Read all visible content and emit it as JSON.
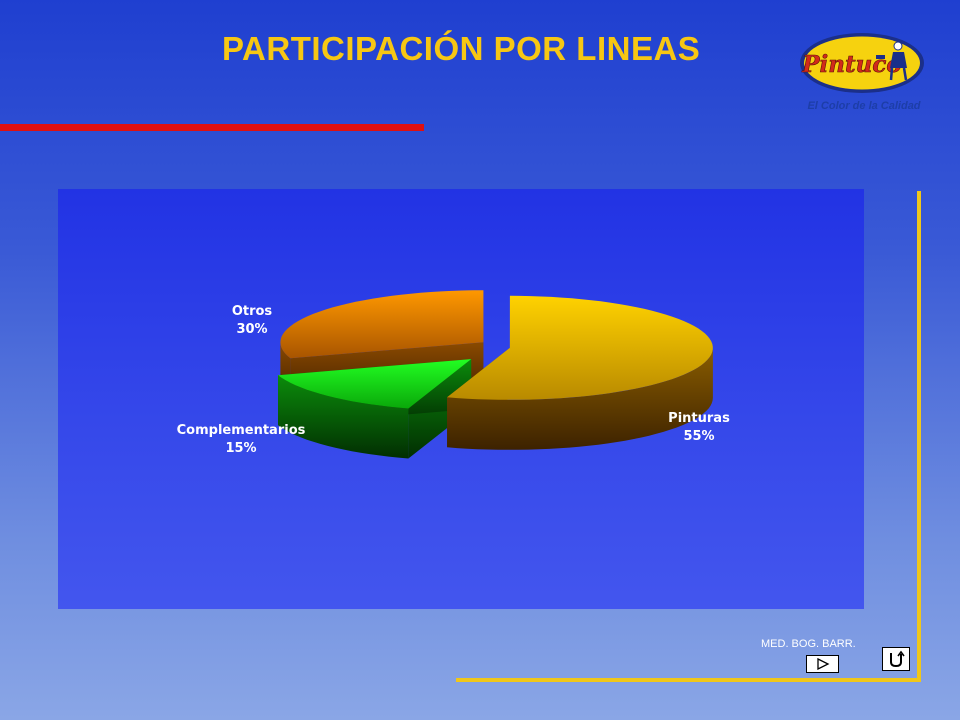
{
  "slide": {
    "title": "PARTICIPACIÓN POR LINEAS",
    "footer": "MED. BOG. BARR.",
    "accent_colors": {
      "title": "#f7c713",
      "bar": "#e01010",
      "frame": "#f0c71a"
    }
  },
  "logo": {
    "brand_text": "Pintuco",
    "tagline": "El Color de la Calidad",
    "icon": "pintuco-logo"
  },
  "nav": {
    "play_icon": "play-icon",
    "return_icon": "return-icon"
  },
  "chart_data": {
    "type": "pie",
    "style": "3d-exploded",
    "title": "",
    "categories": [
      "Pinturas",
      "Complementarios",
      "Otros"
    ],
    "values": [
      55,
      15,
      30
    ],
    "labels": [
      {
        "name": "Pinturas",
        "pct": "55%"
      },
      {
        "name": "Complementarios",
        "pct": "15%"
      },
      {
        "name": "Otros",
        "pct": "30%"
      }
    ],
    "colors": [
      "#f2c200",
      "#19e619",
      "#f28c00"
    ],
    "legend": "none"
  }
}
